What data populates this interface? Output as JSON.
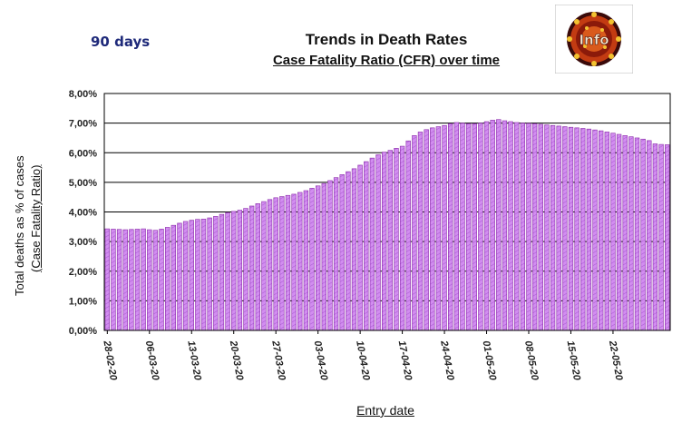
{
  "header": {
    "days_label": "90 days",
    "title": "Trends in Death Rates",
    "subtitle": "Case Fatality Ratio (CFR) over time"
  },
  "logo": {
    "icon": "virus-logo-icon",
    "text": "Info"
  },
  "colors": {
    "bar_fill": "#d28df0",
    "bar_stroke": "#8a2aa8",
    "grid": "#000000",
    "days_label": "#1f2a7a"
  },
  "chart_data": {
    "type": "bar",
    "title": "Trends in Death Rates",
    "subtitle": "Case Fatality Ratio (CFR) over time",
    "xlabel": "Entry date",
    "ylabel": "Total deaths as % of cases",
    "ylabel_sub": "(Case Fatality Ratio)",
    "ylim": [
      0,
      8
    ],
    "yticks": [
      "0,00%",
      "1,00%",
      "2,00%",
      "3,00%",
      "4,00%",
      "5,00%",
      "6,00%",
      "7,00%",
      "8,00%"
    ],
    "grid": true,
    "legend": "none",
    "start_date": "28-02-20",
    "xtick_labels": [
      "28-02-20",
      "06-03-20",
      "13-03-20",
      "20-03-20",
      "27-03-20",
      "03-04-20",
      "10-04-20",
      "17-04-20",
      "24-04-20",
      "01-05-20",
      "08-05-20",
      "15-05-20",
      "22-05-20"
    ],
    "series": [
      {
        "values": [
          3.43,
          3.42,
          3.41,
          3.4,
          3.41,
          3.42,
          3.43,
          3.4,
          3.38,
          3.42,
          3.48,
          3.55,
          3.62,
          3.68,
          3.72,
          3.75,
          3.76,
          3.8,
          3.85,
          3.92,
          3.98,
          4.02,
          4.06,
          4.12,
          4.2,
          4.28,
          4.35,
          4.42,
          4.48,
          4.52,
          4.56,
          4.6,
          4.66,
          4.72,
          4.8,
          4.88,
          4.96,
          5.06,
          5.16,
          5.26,
          5.36,
          5.46,
          5.58,
          5.7,
          5.82,
          5.93,
          6.02,
          6.08,
          6.15,
          6.22,
          6.4,
          6.58,
          6.7,
          6.78,
          6.84,
          6.88,
          6.92,
          6.98,
          7.02,
          7.0,
          6.98,
          6.98,
          7.0,
          7.05,
          7.1,
          7.12,
          7.08,
          7.05,
          7.02,
          7.0,
          6.99,
          6.98,
          6.96,
          6.94,
          6.92,
          6.9,
          6.88,
          6.86,
          6.84,
          6.82,
          6.8,
          6.77,
          6.74,
          6.7,
          6.66,
          6.62,
          6.58,
          6.54,
          6.5,
          6.46,
          6.41,
          6.3,
          6.28,
          6.27
        ]
      }
    ]
  }
}
